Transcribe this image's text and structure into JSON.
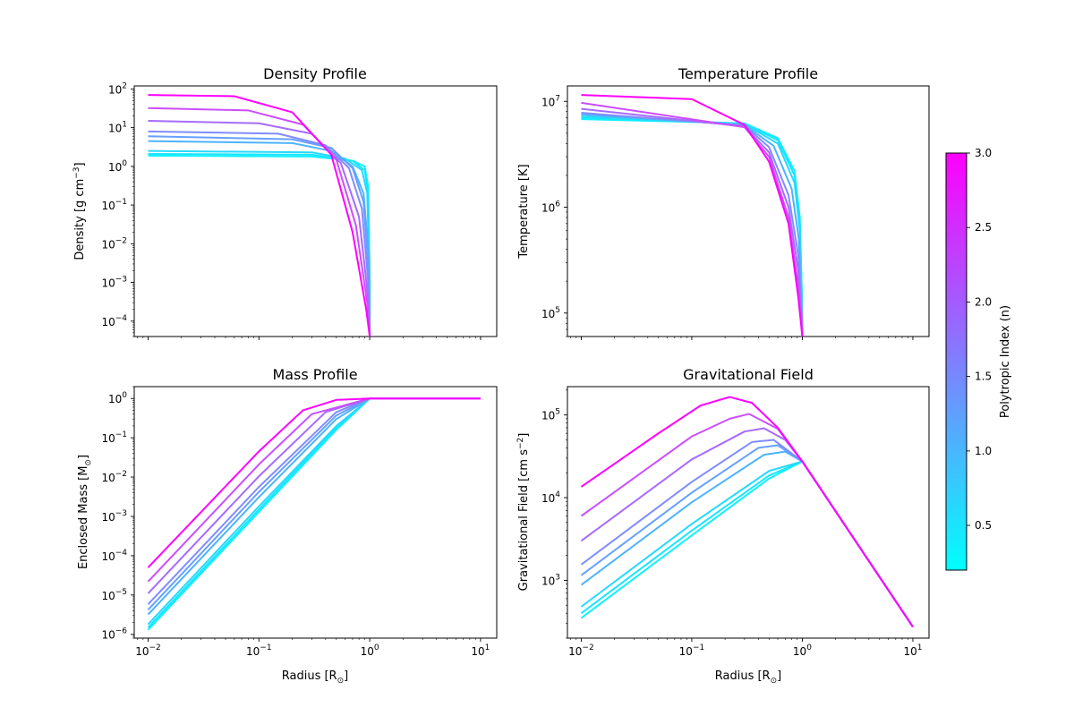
{
  "chart_data": [
    {
      "type": "line",
      "title": "Density Profile",
      "xlabel": "",
      "ylabel": "Density [g cm$^{-3}$]",
      "x_scale": "log",
      "y_scale": "log",
      "xlim": [
        0.0075,
        14
      ],
      "ylim": [
        4e-05,
        120
      ],
      "ytick_labels": [
        "10^2",
        "10^1",
        "10^0",
        "10^-1",
        "10^-2",
        "10^-3",
        "10^-4"
      ],
      "series": [
        {
          "n": 0.2,
          "color": "#0df2ff",
          "x": [
            0.01,
            0.3,
            0.7,
            0.9,
            0.97,
            1.0,
            1.0
          ],
          "y": [
            1.9,
            1.8,
            1.4,
            1.0,
            0.3,
            0.001,
            4e-05
          ]
        },
        {
          "n": 0.35,
          "color": "#1ae5ff",
          "x": [
            0.01,
            0.3,
            0.7,
            0.9,
            0.97,
            1.0,
            1.0
          ],
          "y": [
            2.1,
            2.0,
            1.4,
            0.8,
            0.2,
            0.001,
            4e-05
          ]
        },
        {
          "n": 0.5,
          "color": "#26d9ff",
          "x": [
            0.01,
            0.3,
            0.6,
            0.85,
            0.95,
            0.995,
            1.0
          ],
          "y": [
            2.5,
            2.3,
            1.6,
            0.8,
            0.2,
            0.001,
            4e-05
          ]
        },
        {
          "n": 1.0,
          "color": "#4db3ff",
          "x": [
            0.01,
            0.2,
            0.45,
            0.7,
            0.88,
            0.98,
            1.0
          ],
          "y": [
            4.5,
            4.0,
            2.5,
            1.0,
            0.2,
            0.005,
            4e-05
          ]
        },
        {
          "n": 1.25,
          "color": "#66a0ff",
          "x": [
            0.01,
            0.2,
            0.45,
            0.7,
            0.88,
            0.98,
            1.0
          ],
          "y": [
            6.0,
            5.0,
            3.0,
            0.9,
            0.12,
            0.002,
            4e-05
          ]
        },
        {
          "n": 1.5,
          "color": "#808cff",
          "x": [
            0.01,
            0.15,
            0.4,
            0.65,
            0.85,
            0.97,
            1.0
          ],
          "y": [
            8.0,
            7.0,
            3.5,
            0.9,
            0.08,
            0.001,
            4e-05
          ]
        },
        {
          "n": 2.0,
          "color": "#a66bff",
          "x": [
            0.01,
            0.1,
            0.3,
            0.55,
            0.8,
            0.96,
            1.0
          ],
          "y": [
            15,
            13,
            7,
            1.2,
            0.05,
            0.0005,
            4e-05
          ]
        },
        {
          "n": 2.5,
          "color": "#cc4dff",
          "x": [
            0.01,
            0.08,
            0.25,
            0.5,
            0.75,
            0.95,
            1.0
          ],
          "y": [
            32,
            28,
            12,
            1.5,
            0.03,
            0.0003,
            4e-05
          ]
        },
        {
          "n": 3.0,
          "color": "#ff00ff",
          "x": [
            0.01,
            0.06,
            0.2,
            0.45,
            0.7,
            0.93,
            1.0
          ],
          "y": [
            70,
            65,
            25,
            2.0,
            0.02,
            0.0002,
            4e-05
          ]
        }
      ]
    },
    {
      "type": "line",
      "title": "Temperature Profile",
      "xlabel": "",
      "ylabel": "Temperature [K]",
      "x_scale": "log",
      "y_scale": "log",
      "xlim": [
        0.0075,
        14
      ],
      "ylim": [
        60000,
        14000000
      ],
      "ytick_labels": [
        "10^7",
        "10^6",
        "10^5"
      ],
      "series": [
        {
          "n": 0.2,
          "color": "#0df2ff",
          "x": [
            0.01,
            0.3,
            0.6,
            0.85,
            0.95,
            0.99,
            1.0
          ],
          "y": [
            6800000,
            6200000,
            4500000,
            2200000,
            800000,
            150000,
            60000
          ]
        },
        {
          "n": 0.35,
          "color": "#1ae5ff",
          "x": [
            0.01,
            0.3,
            0.6,
            0.85,
            0.95,
            0.99,
            1.0
          ],
          "y": [
            7000000,
            6200000,
            4300000,
            2000000,
            700000,
            150000,
            60000
          ]
        },
        {
          "n": 0.5,
          "color": "#26d9ff",
          "x": [
            0.01,
            0.3,
            0.6,
            0.85,
            0.95,
            0.99,
            1.0
          ],
          "y": [
            7200000,
            6100000,
            4000000,
            1700000,
            600000,
            130000,
            60000
          ]
        },
        {
          "n": 1.0,
          "color": "#4db3ff",
          "x": [
            0.01,
            0.3,
            0.55,
            0.8,
            0.93,
            0.99,
            1.0
          ],
          "y": [
            7500000,
            6000000,
            3800000,
            1500000,
            500000,
            110000,
            60000
          ]
        },
        {
          "n": 1.5,
          "color": "#808cff",
          "x": [
            0.01,
            0.3,
            0.5,
            0.75,
            0.92,
            0.99,
            1.0
          ],
          "y": [
            7800000,
            5900000,
            3700000,
            1300000,
            350000,
            90000,
            60000
          ]
        },
        {
          "n": 2.0,
          "color": "#a66bff",
          "x": [
            0.01,
            0.3,
            0.5,
            0.75,
            0.92,
            0.99,
            1.0
          ],
          "y": [
            8500000,
            5800000,
            3300000,
            1000000,
            250000,
            80000,
            60000
          ]
        },
        {
          "n": 2.5,
          "color": "#cc4dff",
          "x": [
            0.01,
            0.3,
            0.5,
            0.75,
            0.92,
            0.99,
            1.0
          ],
          "y": [
            9700000,
            5700000,
            3000000,
            800000,
            180000,
            70000,
            60000
          ]
        },
        {
          "n": 3.0,
          "color": "#ff00ff",
          "x": [
            0.01,
            0.1,
            0.3,
            0.5,
            0.75,
            0.92,
            1.0
          ],
          "y": [
            11500000,
            10500000,
            6000000,
            2700000,
            700000,
            140000,
            60000
          ]
        }
      ]
    },
    {
      "type": "line",
      "title": "Mass Profile",
      "xlabel": "Radius [R$_\\odot$]",
      "ylabel": "Enclosed Mass [M$_\\odot$]",
      "x_scale": "log",
      "y_scale": "log",
      "xlim": [
        0.0075,
        14
      ],
      "ylim": [
        8e-07,
        2
      ],
      "xtick_labels": [
        "10^-2",
        "10^-1",
        "10^0",
        "10^1"
      ],
      "ytick_labels": [
        "10^0",
        "10^-1",
        "10^-2",
        "10^-3",
        "10^-4",
        "10^-5",
        "10^-6"
      ],
      "series": [
        {
          "n": 0.2,
          "color": "#0df2ff",
          "x": [
            0.01,
            0.1,
            0.5,
            1.0,
            10.0
          ],
          "y": [
            1.3e-06,
            0.0013,
            0.16,
            1.0,
            1.0
          ]
        },
        {
          "n": 0.35,
          "color": "#1ae5ff",
          "x": [
            0.01,
            0.1,
            0.5,
            1.0,
            10.0
          ],
          "y": [
            1.5e-06,
            0.0015,
            0.18,
            1.0,
            1.0
          ]
        },
        {
          "n": 0.5,
          "color": "#26d9ff",
          "x": [
            0.01,
            0.1,
            0.5,
            1.0,
            10.0
          ],
          "y": [
            1.8e-06,
            0.0018,
            0.2,
            1.0,
            1.0
          ]
        },
        {
          "n": 1.0,
          "color": "#4db3ff",
          "x": [
            0.01,
            0.1,
            0.5,
            1.0,
            10.0
          ],
          "y": [
            3.2e-06,
            0.0031,
            0.3,
            1.0,
            1.0
          ]
        },
        {
          "n": 1.25,
          "color": "#66a0ff",
          "x": [
            0.01,
            0.1,
            0.5,
            1.0,
            10.0
          ],
          "y": [
            4.2e-06,
            0.0042,
            0.37,
            1.0,
            1.0
          ]
        },
        {
          "n": 1.5,
          "color": "#808cff",
          "x": [
            0.01,
            0.1,
            0.5,
            1.0,
            10.0
          ],
          "y": [
            5.8e-06,
            0.0056,
            0.45,
            1.0,
            1.0
          ]
        },
        {
          "n": 2.0,
          "color": "#a66bff",
          "x": [
            0.01,
            0.1,
            0.4,
            1.0,
            10.0
          ],
          "y": [
            1.1e-05,
            0.0105,
            0.45,
            1.0,
            1.0
          ]
        },
        {
          "n": 2.5,
          "color": "#cc4dff",
          "x": [
            0.01,
            0.1,
            0.3,
            1.0,
            10.0
          ],
          "y": [
            2.2e-05,
            0.021,
            0.4,
            1.0,
            1.0
          ]
        },
        {
          "n": 3.0,
          "color": "#ff00ff",
          "x": [
            0.01,
            0.1,
            0.25,
            0.5,
            1.0,
            10.0
          ],
          "y": [
            5e-05,
            0.045,
            0.5,
            0.92,
            1.0,
            1.0
          ]
        }
      ]
    },
    {
      "type": "line",
      "title": "Gravitational Field",
      "xlabel": "Radius [R$_\\odot$]",
      "ylabel": "Gravitational Field [cm s$^{-2}$]",
      "x_scale": "log",
      "y_scale": "log",
      "xlim": [
        0.0075,
        14
      ],
      "ylim": [
        200,
        220000
      ],
      "xtick_labels": [
        "10^-2",
        "10^-1",
        "10^0",
        "10^1"
      ],
      "ytick_labels": [
        "10^5",
        "10^4",
        "10^3"
      ],
      "series": [
        {
          "n": 0.2,
          "color": "#0df2ff",
          "x": [
            0.01,
            0.1,
            0.5,
            1.0,
            10.0
          ],
          "y": [
            350,
            3500,
            17000,
            27400,
            274
          ]
        },
        {
          "n": 0.35,
          "color": "#1ae5ff",
          "x": [
            0.01,
            0.1,
            0.5,
            1.0,
            10.0
          ],
          "y": [
            400,
            4000,
            18500,
            27400,
            274
          ]
        },
        {
          "n": 0.5,
          "color": "#26d9ff",
          "x": [
            0.01,
            0.1,
            0.5,
            1.0,
            10.0
          ],
          "y": [
            480,
            4800,
            21000,
            27400,
            274
          ]
        },
        {
          "n": 1.0,
          "color": "#4db3ff",
          "x": [
            0.01,
            0.1,
            0.45,
            0.7,
            1.0,
            10.0
          ],
          "y": [
            880,
            8800,
            33000,
            36000,
            27400,
            274
          ]
        },
        {
          "n": 1.25,
          "color": "#66a0ff",
          "x": [
            0.01,
            0.1,
            0.4,
            0.6,
            1.0,
            10.0
          ],
          "y": [
            1150,
            11500,
            40000,
            43000,
            27400,
            274
          ]
        },
        {
          "n": 1.5,
          "color": "#808cff",
          "x": [
            0.01,
            0.1,
            0.35,
            0.55,
            1.0,
            10.0
          ],
          "y": [
            1550,
            15500,
            47000,
            50000,
            27400,
            274
          ]
        },
        {
          "n": 2.0,
          "color": "#a66bff",
          "x": [
            0.01,
            0.1,
            0.3,
            0.45,
            0.7,
            1.0,
            10.0
          ],
          "y": [
            3000,
            29000,
            63000,
            69000,
            50000,
            27400,
            274
          ]
        },
        {
          "n": 2.5,
          "color": "#cc4dff",
          "x": [
            0.01,
            0.1,
            0.22,
            0.33,
            0.6,
            1.0,
            10.0
          ],
          "y": [
            6000,
            55000,
            90000,
            103000,
            68000,
            27400,
            274
          ]
        },
        {
          "n": 3.0,
          "color": "#ff00ff",
          "x": [
            0.01,
            0.05,
            0.12,
            0.22,
            0.35,
            0.6,
            1.0,
            10.0
          ],
          "y": [
            13500,
            60000,
            130000,
            165000,
            140000,
            70000,
            27400,
            274
          ]
        }
      ]
    }
  ],
  "colorbar": {
    "label": "Polytropic Index (n)",
    "range": [
      0.2,
      3.0
    ],
    "tick_labels": [
      "3.0",
      "2.5",
      "2.0",
      "1.5",
      "1.0",
      "0.5"
    ],
    "colors": [
      "#00ffff",
      "#ff00ff"
    ]
  }
}
